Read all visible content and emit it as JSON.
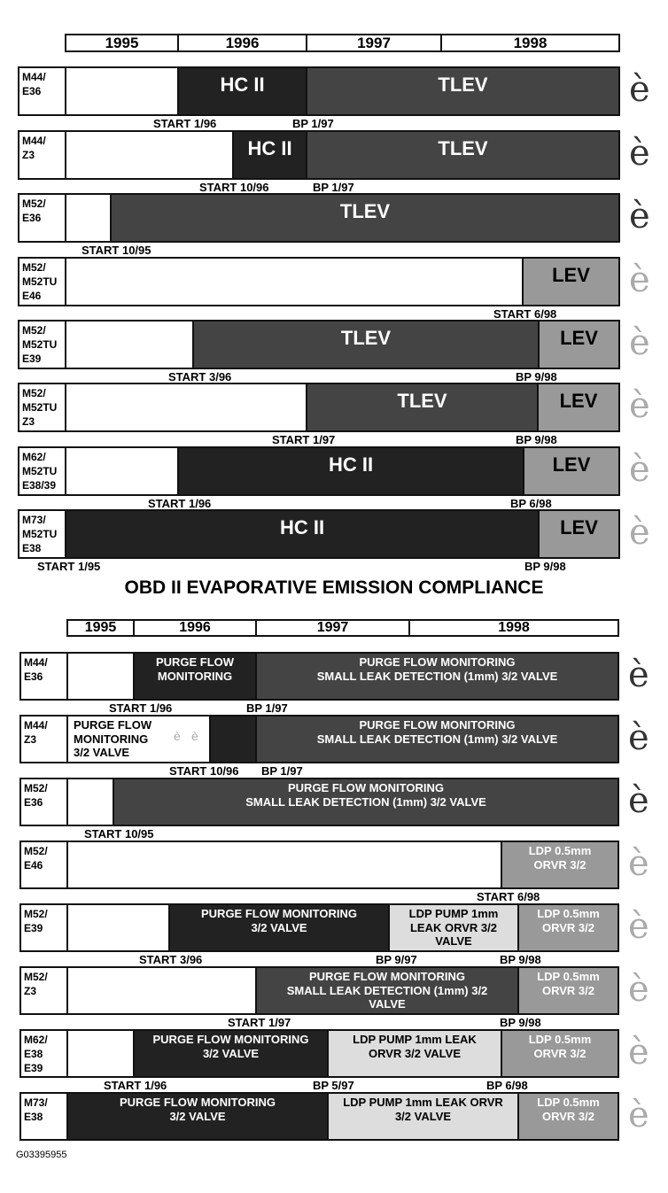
{
  "sections": [
    {
      "years": [
        "1995",
        "1996",
        "1997",
        "1998"
      ],
      "rows": [
        {
          "label": [
            "M44/",
            "E36"
          ],
          "segments": [
            null,
            {
              "text": [
                "HC II"
              ]
            },
            {
              "text": [
                "TLEV"
              ]
            }
          ],
          "markers": [
            "START 1/96",
            "BP 1/97"
          ],
          "icon": "è"
        },
        {
          "label": [
            "M44/",
            "Z3"
          ],
          "segments": [
            null,
            {
              "text": [
                "HC II"
              ]
            },
            {
              "text": [
                "TLEV"
              ]
            }
          ],
          "markers": [
            "START 10/96",
            "BP 1/97"
          ],
          "icon": "è"
        },
        {
          "label": [
            "M52/",
            "E36"
          ],
          "segments": [
            null,
            {
              "text": [
                "TLEV"
              ]
            }
          ],
          "markers": [
            "START 10/95"
          ],
          "icon": "è"
        },
        {
          "label": [
            "M52/",
            "M52TU",
            "E46"
          ],
          "segments": [
            null,
            {
              "text": [
                "LEV"
              ]
            }
          ],
          "markers": [
            "START 6/98"
          ],
          "icon": "è"
        },
        {
          "label": [
            "M52/",
            "M52TU",
            "E39"
          ],
          "segments": [
            null,
            {
              "text": [
                "TLEV"
              ]
            },
            {
              "text": [
                "LEV"
              ]
            }
          ],
          "markers": [
            "START 3/96",
            "BP 9/98"
          ],
          "icon": "è"
        },
        {
          "label": [
            "M52/",
            "M52TU",
            "Z3"
          ],
          "segments": [
            null,
            {
              "text": [
                "TLEV"
              ]
            },
            {
              "text": [
                "LEV"
              ]
            }
          ],
          "markers": [
            "START 1/97",
            "BP 9/98"
          ],
          "icon": "è"
        },
        {
          "label": [
            "M62/",
            "M52TU",
            "E38/39"
          ],
          "segments": [
            null,
            {
              "text": [
                "HC II"
              ]
            },
            {
              "text": [
                "LEV"
              ]
            }
          ],
          "markers": [
            "START 1/96",
            "BP 6/98"
          ],
          "icon": "è"
        },
        {
          "label": [
            "M73/",
            "M52TU",
            "E38"
          ],
          "segments": [
            {
              "text": [
                "HC II"
              ]
            },
            {
              "text": [
                "LEV"
              ]
            }
          ],
          "markers": [
            "START 1/95",
            "BP 9/98"
          ],
          "icon": "è"
        }
      ]
    },
    {
      "years": [
        "1995",
        "1996",
        "1997",
        "1998"
      ],
      "rows": [
        {
          "label": [
            "M44/",
            "E36"
          ],
          "segments": [
            null,
            {
              "text": [
                "PURGE FLOW",
                "MONITORING"
              ]
            },
            {
              "text": [
                "PURGE FLOW MONITORING",
                "SMALL LEAK DETECTION (1mm) 3/2 VALVE"
              ]
            }
          ],
          "markers": [
            "START 1/96",
            "BP 1/97"
          ],
          "icon": "è"
        },
        {
          "label": [
            "M44/",
            "Z3"
          ],
          "segments": [
            {
              "text": [
                "PURGE FLOW",
                "MONITORING",
                "3/2 VALVE"
              ],
              "icons": [
                "è",
                "è"
              ]
            },
            null,
            {
              "text": [
                "PURGE FLOW MONITORING",
                "SMALL LEAK DETECTION (1mm) 3/2 VALVE"
              ]
            }
          ],
          "markers": [
            "START 10/96",
            "BP 1/97"
          ],
          "icon": "è"
        },
        {
          "label": [
            "M52/",
            "E36"
          ],
          "segments": [
            null,
            {
              "text": [
                "PURGE FLOW MONITORING",
                "SMALL LEAK DETECTION (1mm) 3/2 VALVE"
              ]
            }
          ],
          "markers": [
            "START 10/95"
          ],
          "icon": "è"
        },
        {
          "label": [
            "M52/",
            "E46"
          ],
          "segments": [
            null,
            {
              "text": [
                "LDP 0.5mm",
                "ORVR 3/2"
              ]
            }
          ],
          "markers": [
            "START 6/98"
          ],
          "icon": "è"
        },
        {
          "label": [
            "M52/",
            "E39"
          ],
          "segments": [
            null,
            {
              "text": [
                "PURGE FLOW MONITORING",
                "3/2 VALVE"
              ]
            },
            {
              "text": [
                "LDP PUMP 1mm",
                "LEAK ORVR 3/2",
                "VALVE"
              ]
            },
            {
              "text": [
                "LDP 0.5mm",
                "ORVR 3/2"
              ]
            }
          ],
          "markers": [
            "START 3/96",
            "BP 9/97",
            "BP 9/98"
          ],
          "icon": "è"
        },
        {
          "label": [
            "M52/",
            "Z3"
          ],
          "segments": [
            null,
            {
              "text": [
                "PURGE FLOW MONITORING",
                "SMALL LEAK DETECTION (1mm) 3/2",
                "VALVE"
              ]
            },
            {
              "text": [
                "LDP 0.5mm",
                "ORVR 3/2"
              ]
            }
          ],
          "markers": [
            "START 1/97",
            "BP 9/98"
          ],
          "icon": "è"
        },
        {
          "label": [
            "M62/",
            "E38",
            "E39"
          ],
          "segments": [
            null,
            {
              "text": [
                "PURGE FLOW MONITORING",
                "3/2 VALVE"
              ]
            },
            {
              "text": [
                "LDP PUMP 1mm LEAK",
                "ORVR 3/2 VALVE"
              ]
            },
            {
              "text": [
                "LDP 0.5mm",
                "ORVR 3/2"
              ]
            }
          ],
          "markers": [
            "START 1/96",
            "BP 5/97",
            "BP 6/98"
          ],
          "icon": "è"
        },
        {
          "label": [
            "M73/",
            "E38"
          ],
          "segments": [
            {
              "text": [
                "PURGE FLOW MONITORING",
                "3/2 VALVE"
              ]
            },
            {
              "text": [
                "LDP PUMP 1mm LEAK ORVR",
                "3/2 VALVE"
              ]
            },
            {
              "text": [
                "LDP 0.5mm",
                "ORVR 3/2"
              ]
            }
          ],
          "markers": [],
          "icon": "è"
        }
      ]
    }
  ],
  "title": "OBD II EVAPORATIVE EMISSION COMPLIANCE",
  "footer": "G03395955"
}
